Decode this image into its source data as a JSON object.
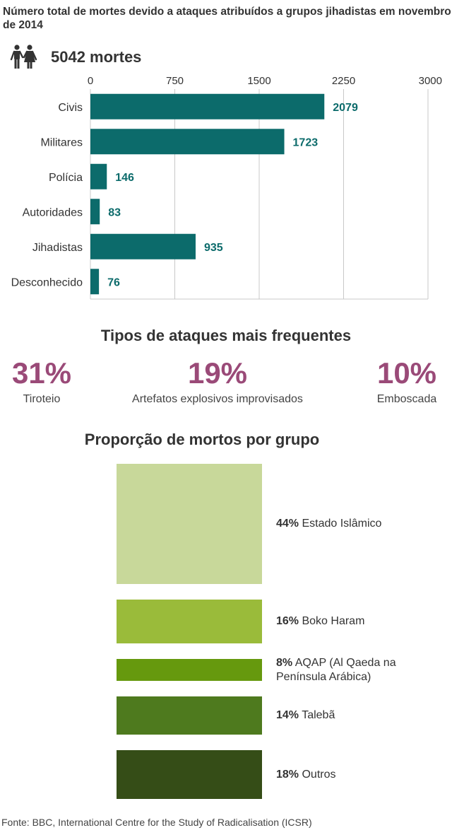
{
  "header": {
    "title": "Número total de mortes devido a ataques atribuídos a grupos jihadistas em novembro de 2014",
    "total": "5042 mortes",
    "icon": "people-icon"
  },
  "chart_data": {
    "type": "bar",
    "orientation": "horizontal",
    "categories": [
      "Civis",
      "Militares",
      "Polícia",
      "Autoridades",
      "Jihadistas",
      "Desconhecido"
    ],
    "values": [
      2079,
      1723,
      146,
      83,
      935,
      76
    ],
    "xlim": [
      0,
      3000
    ],
    "xticks": [
      0,
      750,
      1500,
      2250,
      3000
    ],
    "grid": true,
    "bar_color": "#0c6b6b",
    "label_color": "#0c6b6b"
  },
  "attacks": {
    "title": "Tipos de ataques mais frequentes",
    "color": "#9a4a78",
    "items": [
      {
        "pct": "31%",
        "label": "Tiroteio"
      },
      {
        "pct": "19%",
        "label": "Artefatos explosivos improvisados"
      },
      {
        "pct": "10%",
        "label": "Emboscada"
      }
    ]
  },
  "groups": {
    "title": "Proporção de mortos por grupo",
    "items": [
      {
        "pct": "44%",
        "name": "Estado Islâmico",
        "share": 44,
        "color": "#c8d89a"
      },
      {
        "pct": "16%",
        "name": "Boko Haram",
        "share": 16,
        "color": "#9abb3a"
      },
      {
        "pct": "8%",
        "name": "AQAP (Al Qaeda na Península Arábica)",
        "share": 8,
        "color": "#66990e"
      },
      {
        "pct": "14%",
        "name": "Talebã",
        "share": 14,
        "color": "#4e7a1e"
      },
      {
        "pct": "18%",
        "name": "Outros",
        "share": 18,
        "color": "#354d17"
      }
    ]
  },
  "source": "Fonte: BBC, International Centre for the Study of Radicalisation (ICSR)"
}
